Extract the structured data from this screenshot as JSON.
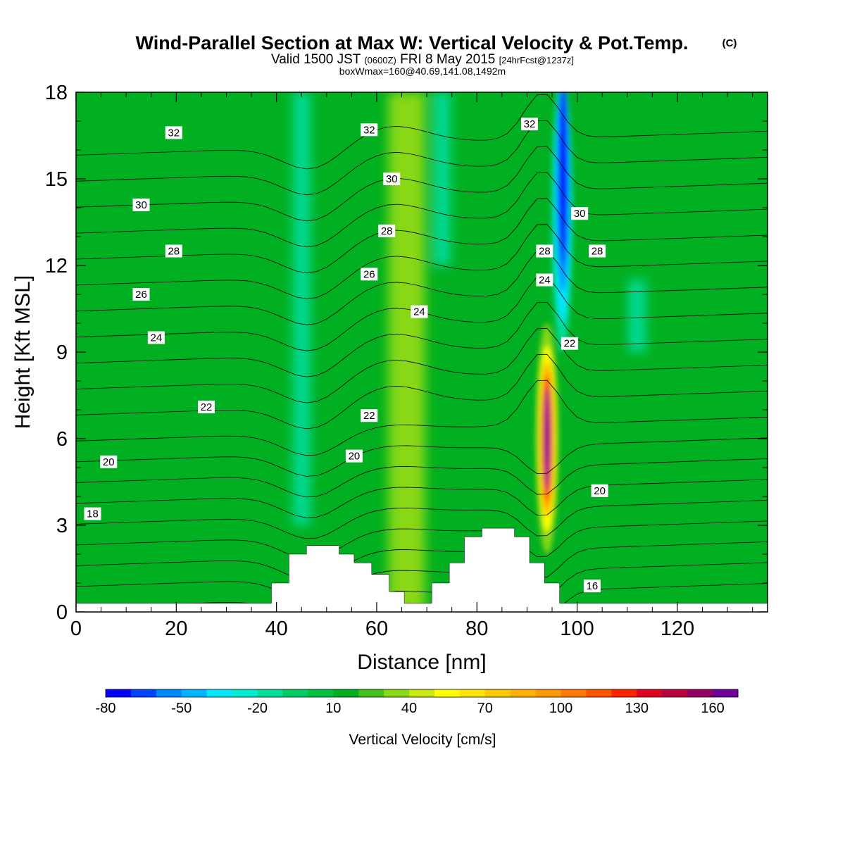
{
  "title": "Wind-Parallel Section at Max W: Vertical Velocity & Pot.Temp.",
  "copyright": "(C)",
  "subtitle": {
    "valid": "Valid 1500 JST",
    "utc": "(0600Z)",
    "date": "FRI 8 May 2015",
    "fcst": "[24hrFcst@1237z]"
  },
  "subtitle2": "boxWmax=160@40.69,141.08,1492m",
  "chart_data": {
    "type": "heatmap",
    "xlabel": "Distance [nm]",
    "ylabel": "Height [Kft MSL]",
    "xlim": [
      0,
      138
    ],
    "ylim": [
      0,
      18
    ],
    "x_ticks": [
      0,
      20,
      40,
      60,
      80,
      100,
      120
    ],
    "y_ticks": [
      0,
      3,
      6,
      9,
      12,
      15,
      18
    ],
    "colorbar": {
      "label": "Vertical Velocity [cm/s]",
      "ticks": [
        -80,
        -50,
        -20,
        10,
        40,
        70,
        100,
        130,
        160
      ],
      "levels": [
        -80,
        -70,
        -60,
        -50,
        -40,
        -30,
        -20,
        -10,
        0,
        10,
        20,
        30,
        40,
        50,
        60,
        70,
        80,
        90,
        100,
        110,
        120,
        130,
        140,
        150,
        160,
        170
      ],
      "colors": [
        "#0000ff",
        "#0044ff",
        "#0088ff",
        "#00b4ff",
        "#00e8ff",
        "#00ecd0",
        "#00dc9a",
        "#00cc66",
        "#00c040",
        "#00b020",
        "#44c020",
        "#88d818",
        "#c8e810",
        "#ffff00",
        "#ffe400",
        "#ffc800",
        "#ffb000",
        "#ff9800",
        "#ff7800",
        "#ff5400",
        "#ff2400",
        "#e00020",
        "#b80040",
        "#940060",
        "#70009a"
      ]
    },
    "vertical_velocity_features": [
      {
        "x": 45,
        "z_range": [
          3,
          18
        ],
        "w": -20
      },
      {
        "x": 73,
        "z_range": [
          12,
          18
        ],
        "w": -20
      },
      {
        "x": 97,
        "z_range": [
          9.5,
          18
        ],
        "w": -80
      },
      {
        "x": 94,
        "z_range": [
          2,
          10
        ],
        "w": 160,
        "peak_height": 6
      },
      {
        "x": 112,
        "z_range": [
          9,
          11.5
        ],
        "w": -20
      },
      {
        "x": 66,
        "z_range": [
          0,
          18
        ],
        "w": 30
      }
    ],
    "terrain": [
      {
        "x": 0,
        "z": 0.3
      },
      {
        "x": 39,
        "z": 0.3
      },
      {
        "x": 39,
        "z": 1.0
      },
      {
        "x": 42.5,
        "z": 1.0
      },
      {
        "x": 42.5,
        "z": 2.0
      },
      {
        "x": 46,
        "z": 2.0
      },
      {
        "x": 46,
        "z": 2.3
      },
      {
        "x": 52.5,
        "z": 2.3
      },
      {
        "x": 52.5,
        "z": 2.0
      },
      {
        "x": 55.5,
        "z": 2.0
      },
      {
        "x": 55.5,
        "z": 1.7
      },
      {
        "x": 59,
        "z": 1.7
      },
      {
        "x": 59,
        "z": 1.3
      },
      {
        "x": 62.5,
        "z": 1.3
      },
      {
        "x": 62.5,
        "z": 0.7
      },
      {
        "x": 65.5,
        "z": 0.7
      },
      {
        "x": 65.5,
        "z": 0.3
      },
      {
        "x": 71,
        "z": 0.3
      },
      {
        "x": 71,
        "z": 1.0
      },
      {
        "x": 74.5,
        "z": 1.0
      },
      {
        "x": 74.5,
        "z": 1.7
      },
      {
        "x": 77.5,
        "z": 1.7
      },
      {
        "x": 77.5,
        "z": 2.6
      },
      {
        "x": 81,
        "z": 2.6
      },
      {
        "x": 81,
        "z": 2.9
      },
      {
        "x": 87.5,
        "z": 2.9
      },
      {
        "x": 87.5,
        "z": 2.6
      },
      {
        "x": 90.5,
        "z": 2.6
      },
      {
        "x": 90.5,
        "z": 1.7
      },
      {
        "x": 93.5,
        "z": 1.7
      },
      {
        "x": 93.5,
        "z": 1.0
      },
      {
        "x": 96.5,
        "z": 1.0
      },
      {
        "x": 96.5,
        "z": 0.3
      },
      {
        "x": 138,
        "z": 0.3
      }
    ],
    "contour_labels": [
      {
        "text": "32",
        "x": 19.5,
        "z": 16.6
      },
      {
        "text": "30",
        "x": 13,
        "z": 14.1
      },
      {
        "text": "28",
        "x": 19.5,
        "z": 12.5
      },
      {
        "text": "26",
        "x": 13,
        "z": 11.0
      },
      {
        "text": "24",
        "x": 16,
        "z": 9.5
      },
      {
        "text": "22",
        "x": 26,
        "z": 7.1
      },
      {
        "text": "20",
        "x": 6.5,
        "z": 5.2
      },
      {
        "text": "18",
        "x": 3.3,
        "z": 3.4
      },
      {
        "text": "32",
        "x": 58.5,
        "z": 16.7
      },
      {
        "text": "30",
        "x": 63,
        "z": 15.0
      },
      {
        "text": "28",
        "x": 62,
        "z": 13.2
      },
      {
        "text": "26",
        "x": 58.5,
        "z": 11.7
      },
      {
        "text": "24",
        "x": 68.5,
        "z": 10.4
      },
      {
        "text": "22",
        "x": 58.5,
        "z": 6.8
      },
      {
        "text": "20",
        "x": 55.5,
        "z": 5.4
      },
      {
        "text": "32",
        "x": 90.5,
        "z": 16.9
      },
      {
        "text": "30",
        "x": 100.5,
        "z": 13.8
      },
      {
        "text": "28",
        "x": 93.5,
        "z": 12.5
      },
      {
        "text": "28",
        "x": 104,
        "z": 12.5
      },
      {
        "text": "24",
        "x": 93.5,
        "z": 11.5
      },
      {
        "text": "22",
        "x": 98.5,
        "z": 9.3
      },
      {
        "text": "20",
        "x": 104.5,
        "z": 4.2
      },
      {
        "text": "16",
        "x": 103,
        "z": 0.9
      }
    ]
  }
}
